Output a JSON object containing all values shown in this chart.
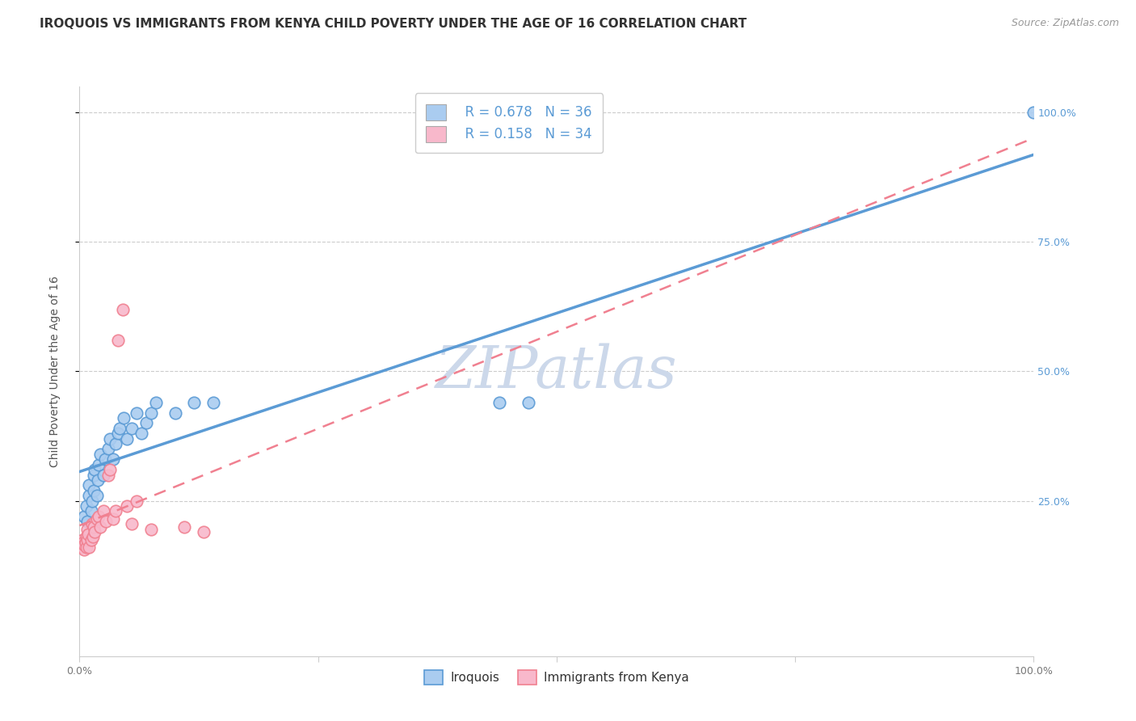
{
  "title": "IROQUOIS VS IMMIGRANTS FROM KENYA CHILD POVERTY UNDER THE AGE OF 16 CORRELATION CHART",
  "source": "Source: ZipAtlas.com",
  "ylabel": "Child Poverty Under the Age of 16",
  "xlim": [
    0,
    1.0
  ],
  "ylim": [
    -0.05,
    1.05
  ],
  "xtick_positions": [
    0.0,
    0.25,
    0.5,
    0.75,
    1.0
  ],
  "xticklabels": [
    "0.0%",
    "",
    "",
    "",
    "100.0%"
  ],
  "ytick_positions": [
    0.25,
    0.5,
    0.75,
    1.0
  ],
  "ytick_labels": [
    "25.0%",
    "50.0%",
    "75.0%",
    "100.0%"
  ],
  "legend_entries": [
    {
      "label": "Iroquois",
      "R": "0.678",
      "N": "36",
      "color": "#aaccf0"
    },
    {
      "label": "Immigrants from Kenya",
      "R": "0.158",
      "N": "34",
      "color": "#f8b8cb"
    }
  ],
  "iroquois_x": [
    0.005,
    0.007,
    0.008,
    0.01,
    0.01,
    0.012,
    0.013,
    0.015,
    0.015,
    0.016,
    0.018,
    0.019,
    0.02,
    0.022,
    0.025,
    0.027,
    0.03,
    0.032,
    0.035,
    0.038,
    0.04,
    0.042,
    0.046,
    0.05,
    0.055,
    0.06,
    0.065,
    0.07,
    0.075,
    0.08,
    0.1,
    0.12,
    0.14,
    0.44,
    0.47,
    1.0
  ],
  "iroquois_y": [
    0.22,
    0.24,
    0.21,
    0.26,
    0.28,
    0.23,
    0.25,
    0.3,
    0.27,
    0.31,
    0.26,
    0.29,
    0.32,
    0.34,
    0.3,
    0.33,
    0.35,
    0.37,
    0.33,
    0.36,
    0.38,
    0.39,
    0.41,
    0.37,
    0.39,
    0.42,
    0.38,
    0.4,
    0.42,
    0.44,
    0.42,
    0.44,
    0.44,
    0.44,
    0.44,
    1.0
  ],
  "kenya_x": [
    0.002,
    0.003,
    0.004,
    0.005,
    0.005,
    0.006,
    0.007,
    0.007,
    0.008,
    0.008,
    0.009,
    0.01,
    0.012,
    0.013,
    0.014,
    0.015,
    0.016,
    0.018,
    0.02,
    0.022,
    0.025,
    0.028,
    0.03,
    0.032,
    0.035,
    0.038,
    0.04,
    0.045,
    0.05,
    0.055,
    0.06,
    0.075,
    0.11,
    0.13
  ],
  "kenya_y": [
    0.16,
    0.175,
    0.17,
    0.155,
    0.165,
    0.17,
    0.18,
    0.16,
    0.175,
    0.195,
    0.185,
    0.16,
    0.175,
    0.205,
    0.18,
    0.2,
    0.19,
    0.215,
    0.22,
    0.2,
    0.23,
    0.21,
    0.3,
    0.31,
    0.215,
    0.23,
    0.56,
    0.62,
    0.24,
    0.205,
    0.25,
    0.195,
    0.2,
    0.19
  ],
  "iroquois_line_color": "#5b9bd5",
  "kenya_line_color": "#f08090",
  "scatter_iroquois_color": "#aaccf0",
  "scatter_kenya_color": "#f8b8cb",
  "grid_color": "#cccccc",
  "watermark_text": "ZIPatlas",
  "watermark_color": "#ccd8ea",
  "background_color": "#ffffff",
  "title_fontsize": 11,
  "ylabel_fontsize": 10,
  "tick_fontsize": 9,
  "legend_fontsize": 12,
  "source_fontsize": 9
}
